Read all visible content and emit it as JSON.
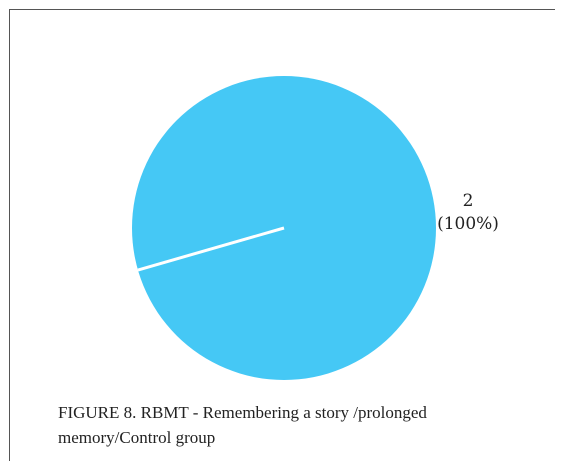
{
  "caption": "FIGURE 8.  RBMT - Remembering a story /prolonged memory/Control group",
  "chart_data": {
    "type": "pie",
    "title": "",
    "slices": [
      {
        "value": 2,
        "label": "2",
        "percent_label": "(100%)",
        "color": "#45c8f5"
      }
    ],
    "divider_color": "#ffffff",
    "legend": "none"
  }
}
